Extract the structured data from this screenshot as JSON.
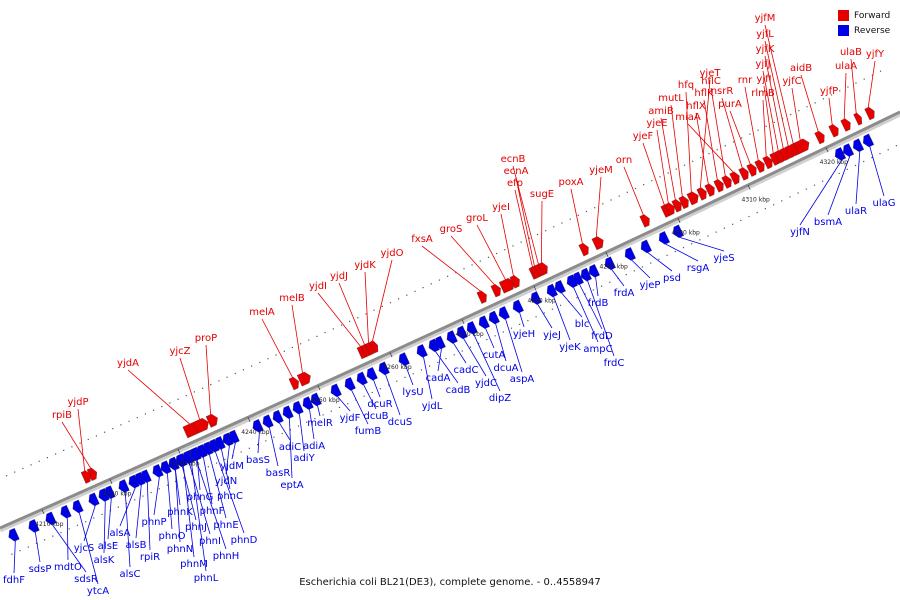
{
  "caption": "Escherichia coli BL21(DE3), complete genome. - 0..4558947",
  "legend": {
    "forward_label": "Forward",
    "reverse_label": "Reverse",
    "forward_color": "#e60000",
    "reverse_color": "#0000e6"
  },
  "colors": {
    "forward": "#e60000",
    "reverse": "#0000e6",
    "backbone": "#8c8c8c"
  },
  "kbp_ticks": [
    "4210 kbp",
    "4220 kbp",
    "4230 kbp",
    "4240 kbp",
    "4250 kbp",
    "4260 kbp",
    "4270 kbp",
    "4280 kbp",
    "4290 kbp",
    "4300 kbp",
    "4310 kbp",
    "4320 kbp"
  ],
  "forward_genes": [
    "rpiB",
    "yjdP",
    "yjdA",
    "yjcZ",
    "proP",
    "melA",
    "melB",
    "yjdI",
    "yjdJ",
    "yjdK",
    "yjdO",
    "fxsA",
    "groS",
    "groL",
    "yjeI",
    "efp",
    "ecnA",
    "ecnB",
    "sugE",
    "poxA",
    "yjeM",
    "orn",
    "yjeF",
    "yjeE",
    "amiB",
    "mutL",
    "hfq",
    "yjeT",
    "hflX",
    "hflK",
    "hflC",
    "miaA",
    "nsrR",
    "purA",
    "rnr",
    "rlmB",
    "yjfI",
    "yjfJ",
    "yjfK",
    "yjfL",
    "yjfM",
    "yjfC",
    "aidB",
    "yjfP",
    "ulaA",
    "ulaB",
    "yjfY"
  ],
  "reverse_genes": [
    "fdhF",
    "sdsP",
    "sdsR",
    "mdtO",
    "ytcA",
    "yjcS",
    "alsK",
    "alsE",
    "alsC",
    "alsA",
    "alsB",
    "rpiR",
    "phnP",
    "phnO",
    "phnN",
    "phnM",
    "phnL",
    "phnK",
    "phnJ",
    "phnI",
    "phnH",
    "phnG",
    "phnF",
    "phnE",
    "phnD",
    "phnC",
    "yjdN",
    "yjdM",
    "basS",
    "basR",
    "adiC",
    "eptA",
    "adiY",
    "adiA",
    "melR",
    "yjdF",
    "fumB",
    "dcuB",
    "dcuR",
    "dcuS",
    "lysU",
    "yjdL",
    "cadB",
    "cadA",
    "cadC",
    "yjdC",
    "dipZ",
    "cutA",
    "dcuA",
    "aspA",
    "yjeH",
    "yjeJ",
    "yjeK",
    "blc",
    "ampC",
    "frdD",
    "frdC",
    "frdB",
    "frdA",
    "yjeP",
    "psd",
    "rsgA",
    "yjeS",
    "yjfN",
    "bsmA",
    "ulaR",
    "ulaG"
  ]
}
